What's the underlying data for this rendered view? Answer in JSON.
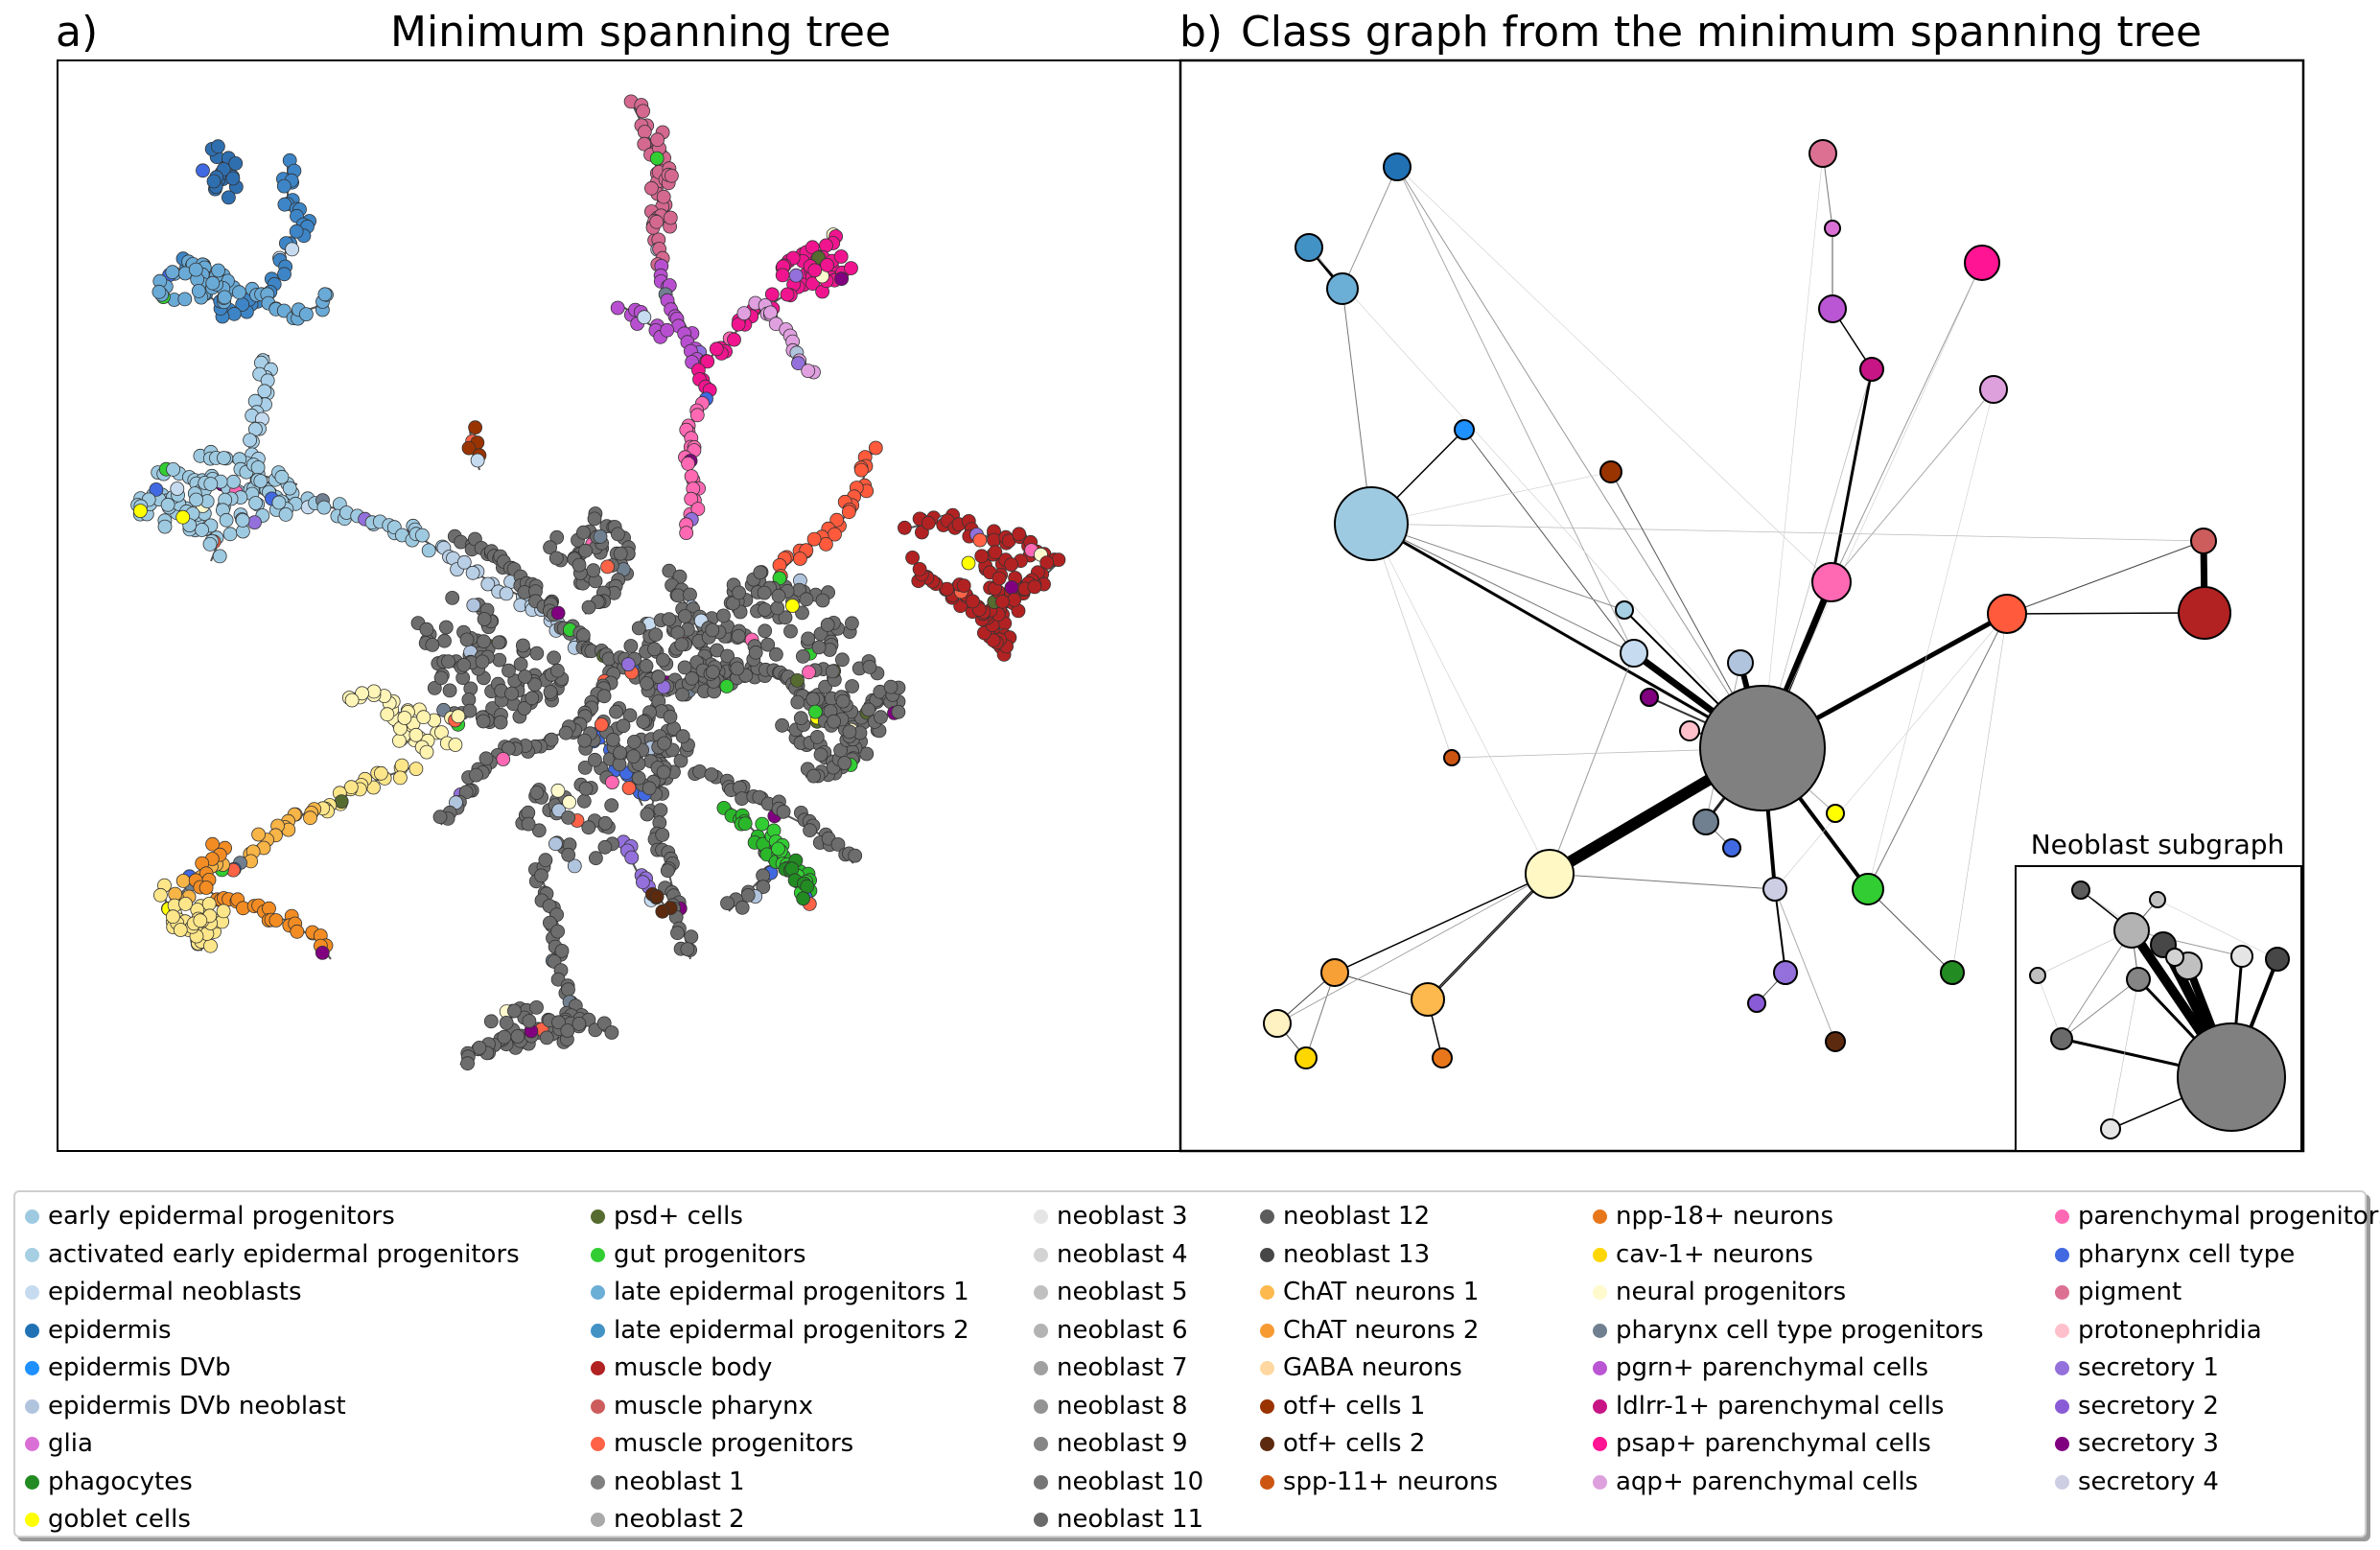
{
  "panel_a": {
    "letter": "a)",
    "title": "Minimum spanning tree"
  },
  "panel_b": {
    "letter": "b)",
    "title": "Class graph from the minimum spanning tree"
  },
  "inset": {
    "title": "Neoblast subgraph"
  },
  "legend": [
    [
      {
        "label": "early epidermal progenitors",
        "color": "#9ecae1"
      },
      {
        "label": "activated early epidermal progenitors",
        "color": "#a6cfe3"
      },
      {
        "label": "epidermal neoblasts",
        "color": "#c6dbef"
      },
      {
        "label": "epidermis",
        "color": "#2171b5"
      },
      {
        "label": "epidermis DVb",
        "color": "#1e90ff"
      },
      {
        "label": "epidermis DVb neoblast",
        "color": "#b0c4de"
      },
      {
        "label": "glia",
        "color": "#da70d6"
      },
      {
        "label": "phagocytes",
        "color": "#228b22"
      },
      {
        "label": "goblet cells",
        "color": "#ffff00"
      }
    ],
    [
      {
        "label": "psd+ cells",
        "color": "#556b2f"
      },
      {
        "label": "gut progenitors",
        "color": "#32cd32"
      },
      {
        "label": "late epidermal progenitors 1",
        "color": "#6baed6"
      },
      {
        "label": "late epidermal progenitors 2",
        "color": "#4292c6"
      },
      {
        "label": "muscle body",
        "color": "#b22222"
      },
      {
        "label": "muscle pharynx",
        "color": "#cd5c5c"
      },
      {
        "label": "muscle progenitors",
        "color": "#ff6347"
      },
      {
        "label": "neoblast 1",
        "color": "#808080"
      },
      {
        "label": "neoblast 2",
        "color": "#a9a9a9"
      }
    ],
    [
      {
        "label": "neoblast 3",
        "color": "#e5e5e5"
      },
      {
        "label": "neoblast 4",
        "color": "#d3d3d3"
      },
      {
        "label": "neoblast 5",
        "color": "#c0c0c0"
      },
      {
        "label": "neoblast 6",
        "color": "#b3b3b3"
      },
      {
        "label": "neoblast 7",
        "color": "#a0a0a0"
      },
      {
        "label": "neoblast 8",
        "color": "#939393"
      },
      {
        "label": "neoblast 9",
        "color": "#858585"
      },
      {
        "label": "neoblast 10",
        "color": "#767676"
      },
      {
        "label": "neoblast 11",
        "color": "#6a6a6a"
      }
    ],
    [
      {
        "label": "neoblast 12",
        "color": "#5c5c5c"
      },
      {
        "label": "neoblast 13",
        "color": "#474747"
      },
      {
        "label": "ChAT neurons 1",
        "color": "#fdb94d"
      },
      {
        "label": "ChAT neurons 2",
        "color": "#f89a32"
      },
      {
        "label": "GABA neurons",
        "color": "#fed8a0"
      },
      {
        "label": "otf+ cells 1",
        "color": "#993300"
      },
      {
        "label": "otf+ cells 2",
        "color": "#5c2a0e"
      },
      {
        "label": "spp-11+ neurons",
        "color": "#cc5511"
      }
    ],
    [
      {
        "label": "npp-18+ neurons",
        "color": "#e8771b"
      },
      {
        "label": "cav-1+ neurons",
        "color": "#ffd700"
      },
      {
        "label": "neural progenitors",
        "color": "#fffacd"
      },
      {
        "label": "pharynx cell type progenitors",
        "color": "#708090"
      },
      {
        "label": "pgrn+ parenchymal cells",
        "color": "#ba55d3"
      },
      {
        "label": "ldlrr-1+ parenchymal cells",
        "color": "#c71585"
      },
      {
        "label": "psap+ parenchymal cells",
        "color": "#ff1493"
      },
      {
        "label": "aqp+ parenchymal cells",
        "color": "#dda0dd"
      }
    ],
    [
      {
        "label": "parenchymal progenitors",
        "color": "#ff69b4"
      },
      {
        "label": "pharynx cell type",
        "color": "#4169e1"
      },
      {
        "label": "pigment",
        "color": "#db7093"
      },
      {
        "label": "protonephridia",
        "color": "#ffc0cb"
      },
      {
        "label": "secretory 1",
        "color": "#9370db"
      },
      {
        "label": "secretory 2",
        "color": "#8a5bd6"
      },
      {
        "label": "secretory 3",
        "color": "#800080"
      },
      {
        "label": "secretory 4",
        "color": "#cdcde4"
      }
    ]
  ]
}
